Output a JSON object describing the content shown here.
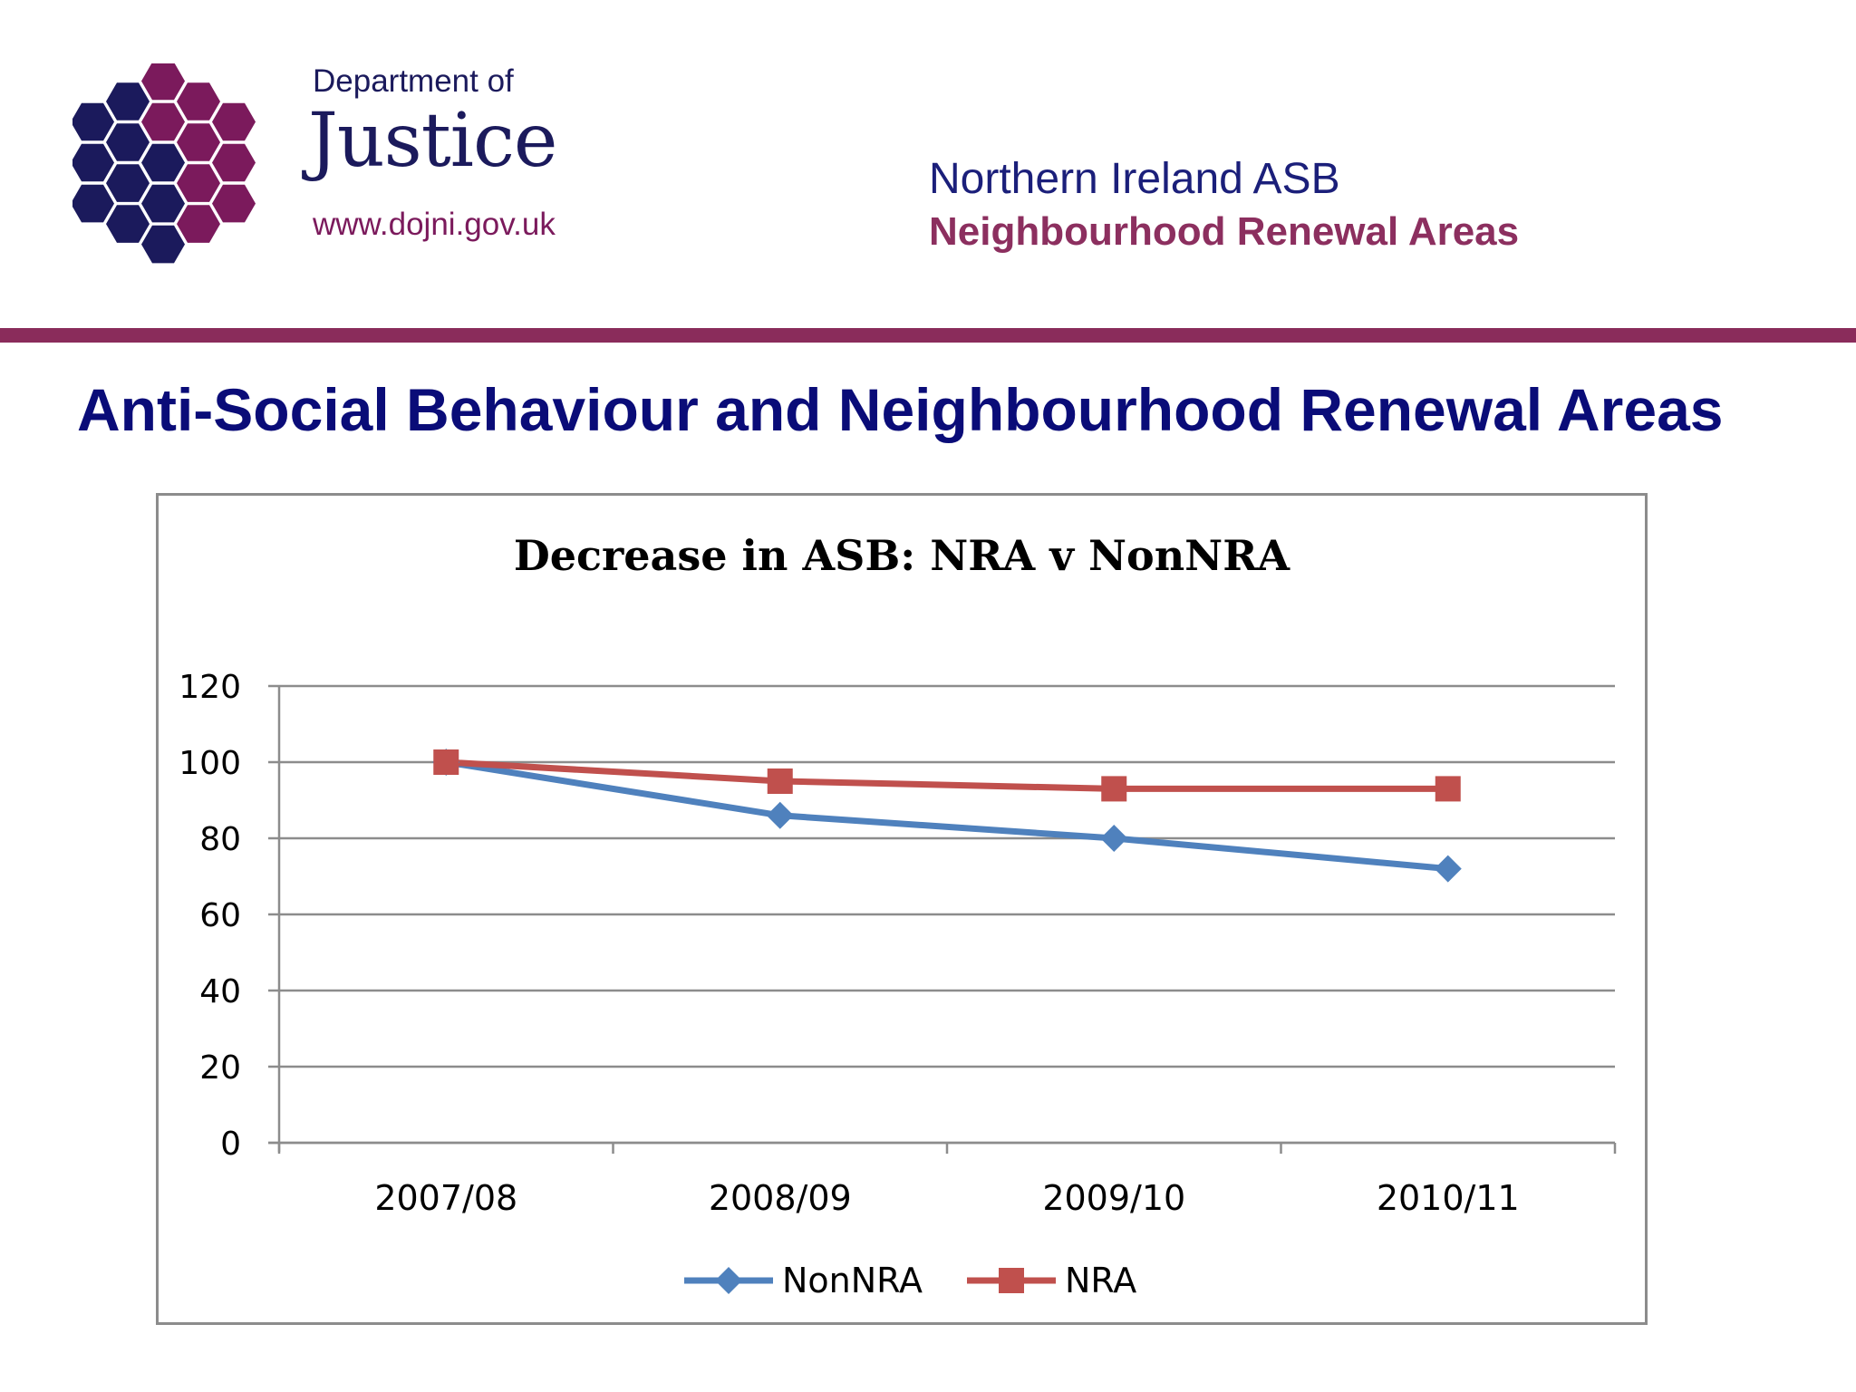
{
  "header": {
    "logo": {
      "dept_label": "Department of",
      "name": "Justice",
      "url": "www.dojni.gov.uk",
      "colors": {
        "dark": "#1b1a5c",
        "accent": "#7b1a5c"
      }
    },
    "line1": "Northern Ireland ASB",
    "line2": "Neighbourhood Renewal Areas"
  },
  "page_title": "Anti-Social Behaviour and Neighbourhood Renewal Areas",
  "chart_data": {
    "type": "line",
    "title": "Decrease in ASB: NRA v NonNRA",
    "xlabel": "",
    "ylabel": "",
    "categories": [
      "2007/08",
      "2008/09",
      "2009/10",
      "2010/11"
    ],
    "ylim": [
      0,
      120
    ],
    "yticks": [
      0,
      20,
      40,
      60,
      80,
      100,
      120
    ],
    "grid": true,
    "legend": "bottom",
    "series": [
      {
        "name": "NonNRA",
        "values": [
          100,
          86,
          80,
          72
        ],
        "color": "#4f81bd",
        "marker": "diamond"
      },
      {
        "name": "NRA",
        "values": [
          100,
          95,
          93,
          93
        ],
        "color": "#c0504d",
        "marker": "square"
      }
    ]
  }
}
